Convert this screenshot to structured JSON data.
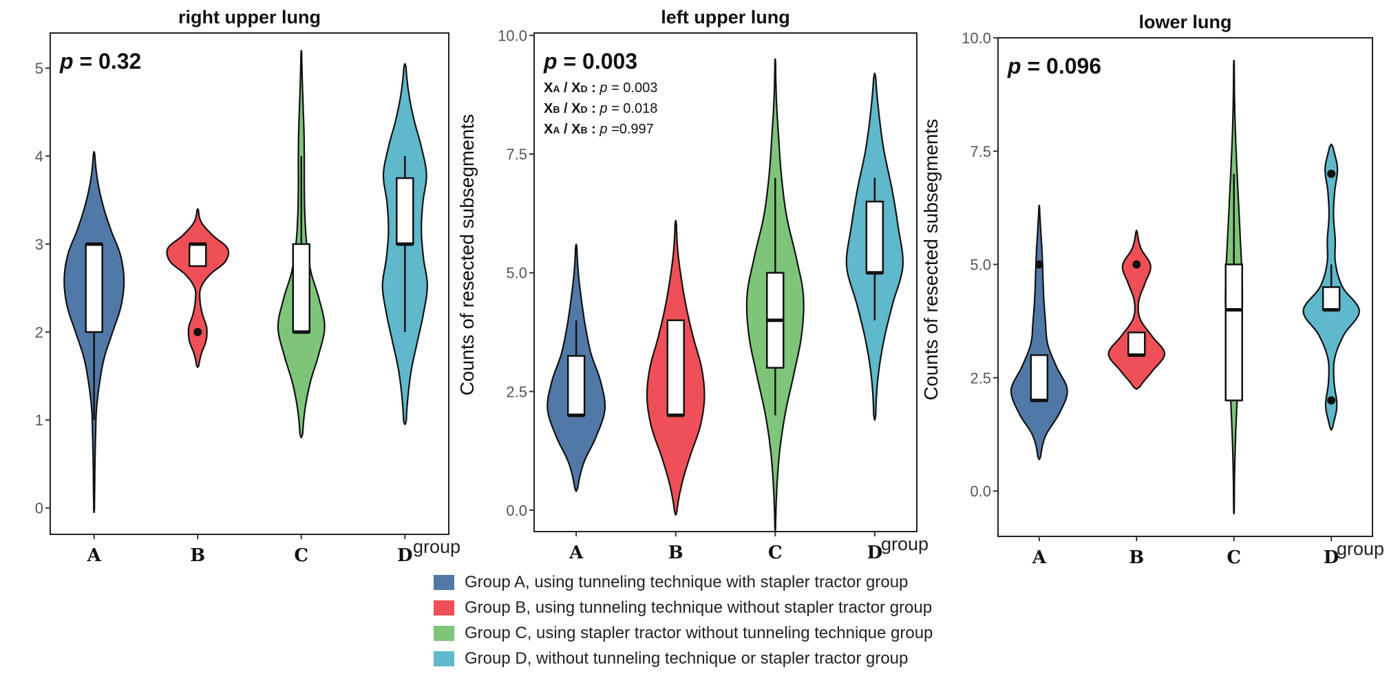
{
  "chart_data": {
    "type": "violin",
    "colors": {
      "A": "#5179a8",
      "B": "#ef4f56",
      "C": "#7ec57a",
      "D": "#5fb8cb"
    },
    "shared": {
      "categories": [
        "A",
        "B",
        "C",
        "D"
      ],
      "xlabel": "group",
      "ylabel": "Counts of resected subsegments"
    },
    "panels": [
      {
        "title": "right upper lung",
        "p_label": "p",
        "p_value": "= 0.32",
        "ylim": [
          -0.3,
          5.4
        ],
        "yticks": [
          0,
          1,
          2,
          3,
          4,
          5
        ],
        "ytick_labels": [
          "0",
          "1",
          "2",
          "3",
          "4",
          "5"
        ],
        "groups": [
          {
            "name": "A",
            "range": [
              -0.05,
              4.05
            ],
            "density": [
              0.01,
              0.02,
              0.03,
              0.05,
              0.08,
              0.18,
              0.34,
              0.62,
              0.9,
              1.0,
              0.88,
              0.55,
              0.28,
              0.1,
              0.02
            ],
            "box": {
              "q1": 2,
              "median": 3,
              "q3": 3,
              "wlo": 1,
              "whi": 3
            },
            "outliers": []
          },
          {
            "name": "B",
            "range": [
              1.6,
              3.4
            ],
            "density": [
              0.03,
              0.12,
              0.28,
              0.3,
              0.16,
              0.08,
              0.1,
              0.4,
              0.92,
              1.0,
              0.5,
              0.12,
              0.02
            ],
            "box": {
              "q1": 2.75,
              "median": 3,
              "q3": 3,
              "wlo": 2.75,
              "whi": 3
            },
            "outliers": [
              2
            ]
          },
          {
            "name": "C",
            "range": [
              0.8,
              5.2
            ],
            "density": [
              0.04,
              0.12,
              0.3,
              0.58,
              0.78,
              0.6,
              0.32,
              0.18,
              0.12,
              0.1,
              0.1,
              0.09,
              0.06,
              0.03,
              0.01
            ],
            "box": {
              "q1": 2,
              "median": 2,
              "q3": 3,
              "wlo": 2,
              "whi": 4
            },
            "outliers": []
          },
          {
            "name": "D",
            "range": [
              0.95,
              5.05
            ],
            "density": [
              0.04,
              0.1,
              0.22,
              0.42,
              0.62,
              0.75,
              0.62,
              0.55,
              0.6,
              0.72,
              0.55,
              0.3,
              0.12,
              0.03
            ],
            "box": {
              "q1": 3,
              "median": 3,
              "q3": 3.75,
              "wlo": 2,
              "whi": 4
            },
            "outliers": []
          }
        ]
      },
      {
        "title": "left upper lung",
        "p_label": "p",
        "p_value": "= 0.003",
        "pairwise": [
          {
            "a": "X",
            "as": "A",
            "b": "X",
            "bs": "D",
            "p": "= 0.003"
          },
          {
            "a": "X",
            "as": "B",
            "b": "X",
            "bs": "D",
            "p": "= 0.018"
          },
          {
            "a": "X",
            "as": "A",
            "b": "X",
            "bs": "B",
            "p": "=0.997"
          }
        ],
        "ylim": [
          -0.45,
          10.05
        ],
        "yticks": [
          0,
          2.5,
          5,
          7.5,
          10
        ],
        "ytick_labels": [
          "0.0",
          "2.5",
          "5.0",
          "7.5",
          "10.0"
        ],
        "groups": [
          {
            "name": "A",
            "range": [
              0.4,
              5.6
            ],
            "density": [
              0.04,
              0.25,
              0.7,
              1.0,
              0.85,
              0.52,
              0.32,
              0.18,
              0.07,
              0.02
            ],
            "box": {
              "q1": 2,
              "median": 2,
              "q3": 3.25,
              "wlo": 2,
              "whi": 4
            },
            "outliers": []
          },
          {
            "name": "B",
            "range": [
              -0.1,
              6.1
            ],
            "density": [
              0.03,
              0.2,
              0.5,
              0.85,
              1.0,
              0.9,
              0.62,
              0.38,
              0.2,
              0.07,
              0.02
            ],
            "box": {
              "q1": 2,
              "median": 2,
              "q3": 4,
              "wlo": 2,
              "whi": 4
            },
            "outliers": []
          },
          {
            "name": "C",
            "range": [
              -0.45,
              9.5
            ],
            "density": [
              0.01,
              0.05,
              0.15,
              0.35,
              0.65,
              0.92,
              0.98,
              0.72,
              0.4,
              0.22,
              0.12,
              0.04,
              0.01
            ],
            "box": {
              "q1": 3,
              "median": 4,
              "q3": 5,
              "wlo": 2,
              "whi": 7
            },
            "outliers": []
          },
          {
            "name": "D",
            "range": [
              1.9,
              9.2
            ],
            "density": [
              0.03,
              0.1,
              0.3,
              0.62,
              0.98,
              0.82,
              0.6,
              0.32,
              0.14,
              0.03
            ],
            "box": {
              "q1": 5,
              "median": 5,
              "q3": 6.5,
              "wlo": 4,
              "whi": 7
            },
            "outliers": []
          }
        ]
      },
      {
        "title": "lower lung",
        "p_label": "p",
        "p_value": "= 0.096",
        "ylim": [
          -1,
          10
        ],
        "yticks": [
          0,
          2.5,
          5,
          7.5,
          10
        ],
        "ytick_labels": [
          "0.0",
          "2.5",
          "5.0",
          "7.5",
          "10.0"
        ],
        "groups": [
          {
            "name": "A",
            "range": [
              0.7,
              6.3
            ],
            "density": [
              0.04,
              0.22,
              0.72,
              1.0,
              0.62,
              0.3,
              0.22,
              0.16,
              0.13,
              0.1,
              0.05,
              0.01
            ],
            "box": {
              "q1": 2,
              "median": 2,
              "q3": 3,
              "wlo": 2,
              "whi": 3
            },
            "outliers": [
              5
            ]
          },
          {
            "name": "B",
            "range": [
              2.25,
              5.75
            ],
            "density": [
              0.08,
              0.55,
              1.0,
              0.55,
              0.12,
              0.08,
              0.3,
              0.5,
              0.15,
              0.02
            ],
            "box": {
              "q1": 3,
              "median": 3,
              "q3": 3.5,
              "wlo": 3,
              "whi": 3.5
            },
            "outliers": [
              5
            ]
          },
          {
            "name": "C",
            "range": [
              -0.5,
              9.5
            ],
            "density": [
              0.01,
              0.02,
              0.05,
              0.1,
              0.16,
              0.24,
              0.3,
              0.28,
              0.22,
              0.16,
              0.1,
              0.05,
              0.02,
              0.01
            ],
            "box": {
              "q1": 2,
              "median": 4,
              "q3": 5,
              "wlo": 2,
              "whi": 7
            },
            "outliers": []
          },
          {
            "name": "D",
            "range": [
              1.35,
              7.65
            ],
            "density": [
              0.04,
              0.2,
              0.1,
              0.12,
              0.45,
              1.0,
              0.4,
              0.15,
              0.14,
              0.08,
              0.12,
              0.22,
              0.05
            ],
            "box": {
              "q1": 4,
              "median": 4,
              "q3": 4.5,
              "wlo": 4,
              "whi": 5
            },
            "outliers": [
              2,
              7
            ]
          }
        ]
      }
    ],
    "legend": [
      {
        "key": "A",
        "label": "Group A, using tunneling technique with stapler tractor group"
      },
      {
        "key": "B",
        "label": "Group B, using tunneling technique without stapler tractor group"
      },
      {
        "key": "C",
        "label": "Group C, using stapler tractor without tunneling technique group"
      },
      {
        "key": "D",
        "label": "Group D, without tunneling technique or stapler tractor group"
      }
    ]
  }
}
